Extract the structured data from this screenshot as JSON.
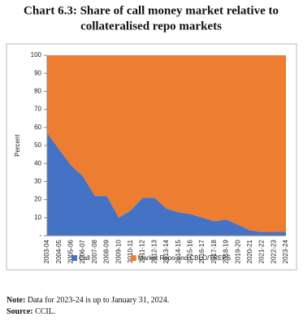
{
  "chart_data": {
    "type": "stacked-area",
    "title_lines": [
      "Chart 6.3: Share of call money market relative to",
      "collateralised repo markets"
    ],
    "y_label": "Percent",
    "categories": [
      "2003-04",
      "2004-05",
      "2005-06",
      "2006-07",
      "2007-08",
      "2008-09",
      "2009-10",
      "2010-11",
      "2011-12",
      "2012-13",
      "2013-14",
      "2014-15",
      "2015-16",
      "2016-17",
      "2017-18",
      "2018-19",
      "2019-20",
      "2020-21",
      "2021-22",
      "2022-23",
      "2023-24"
    ],
    "series": [
      {
        "name": "Call",
        "color": "#4472c4",
        "values": [
          57,
          48,
          39,
          33,
          22,
          22,
          10,
          14,
          21,
          21,
          15,
          13,
          12,
          10,
          8,
          9,
          6,
          3,
          2,
          2,
          2
        ]
      },
      {
        "name": "Market Repo and CBLO/TREPS",
        "color": "#ed7d31",
        "values": [
          43,
          52,
          61,
          67,
          78,
          78,
          90,
          86,
          79,
          79,
          85,
          87,
          88,
          90,
          92,
          91,
          94,
          97,
          98,
          98,
          98
        ]
      }
    ],
    "ylim": [
      0,
      100
    ],
    "yticks": [
      {
        "value": 0,
        "label": "-"
      },
      10,
      20,
      30,
      40,
      50,
      60,
      70,
      80,
      90,
      100
    ],
    "note_label": "Note:",
    "note": "Data for 2023-24 is up to January 31, 2024.",
    "source_label": "Source:",
    "source": "CCIL."
  }
}
